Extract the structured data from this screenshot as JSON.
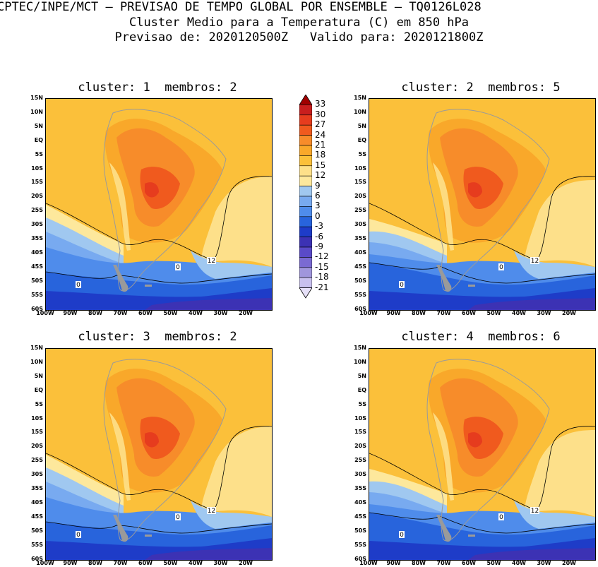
{
  "header": {
    "line1": "CPTEC/INPE/MCT – PREVISAO DE TEMPO GLOBAL POR ENSEMBLE – TQ0126L028",
    "line2": "Cluster Medio para a Temperatura (C) em 850 hPa",
    "line3": "Previsao de: 2020120500Z   Valido para: 2020121800Z"
  },
  "panels": [
    {
      "title": "cluster: 1  membros: 2"
    },
    {
      "title": "cluster: 2  membros: 5"
    },
    {
      "title": "cluster: 3  membros: 2"
    },
    {
      "title": "cluster: 4  membros: 6"
    }
  ],
  "lat_labels": [
    "15N",
    "10N",
    "5N",
    "EQ",
    "5S",
    "10S",
    "15S",
    "20S",
    "25S",
    "30S",
    "35S",
    "40S",
    "45S",
    "50S",
    "55S",
    "60S"
  ],
  "lon_labels": [
    "100W",
    "90W",
    "80W",
    "70W",
    "60W",
    "50W",
    "40W",
    "30W",
    "20W"
  ],
  "contour_labels": {
    "warm": "12",
    "cold": "0"
  },
  "colorbar": {
    "levels": [
      "33",
      "30",
      "27",
      "24",
      "21",
      "18",
      "15",
      "12",
      "9",
      "6",
      "3",
      "0",
      "-3",
      "-6",
      "-9",
      "-12",
      "-15",
      "-18",
      "-21"
    ],
    "colors": [
      "#a00000",
      "#c81e1e",
      "#e63c1e",
      "#f05a1e",
      "#f78c2a",
      "#f9a82a",
      "#fbc03a",
      "#fde08a",
      "#fde89c",
      "#a0c8f0",
      "#78aaf0",
      "#4f8ceb",
      "#2864dc",
      "#1e3cc8",
      "#3c32b4",
      "#5a4ac8",
      "#7a6ad2",
      "#a096dc",
      "#c8c0ee",
      "#e6e0f8"
    ]
  }
}
